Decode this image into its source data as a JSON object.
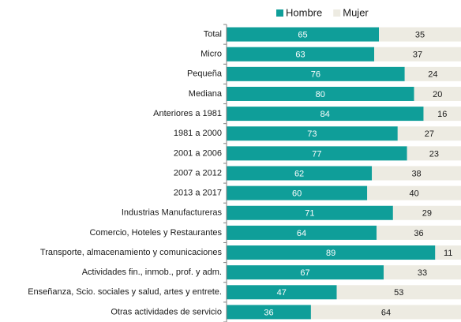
{
  "chart_data": {
    "type": "stacked_bar_horizontal",
    "categories": [
      "Total",
      "Micro",
      "Pequeña",
      "Mediana",
      "Anteriores a 1981",
      "1981 a 2000",
      "2001 a 2006",
      "2007 a 2012",
      "2013 a 2017",
      "Industrias Manufactureras",
      "Comercio, Hoteles y Restaurantes",
      "Transporte, almacenamiento y comunicaciones",
      "Actividades fin., inmob., prof. y adm.",
      "Enseñanza, Scio. sociales y salud, artes y entrete.",
      "Otras actividades de servicio"
    ],
    "series": [
      {
        "name": "Hombre",
        "color": "#0f9e99",
        "label_color": "#ffffff",
        "values": [
          65,
          63,
          76,
          80,
          84,
          73,
          77,
          62,
          60,
          71,
          64,
          89,
          67,
          47,
          36
        ]
      },
      {
        "name": "Mujer",
        "color": "#edebe2",
        "label_color": "#1a1a1a",
        "values": [
          35,
          37,
          24,
          20,
          16,
          27,
          23,
          38,
          40,
          29,
          36,
          11,
          33,
          53,
          64
        ]
      }
    ],
    "xlim": [
      0,
      100
    ],
    "legend": "top"
  }
}
